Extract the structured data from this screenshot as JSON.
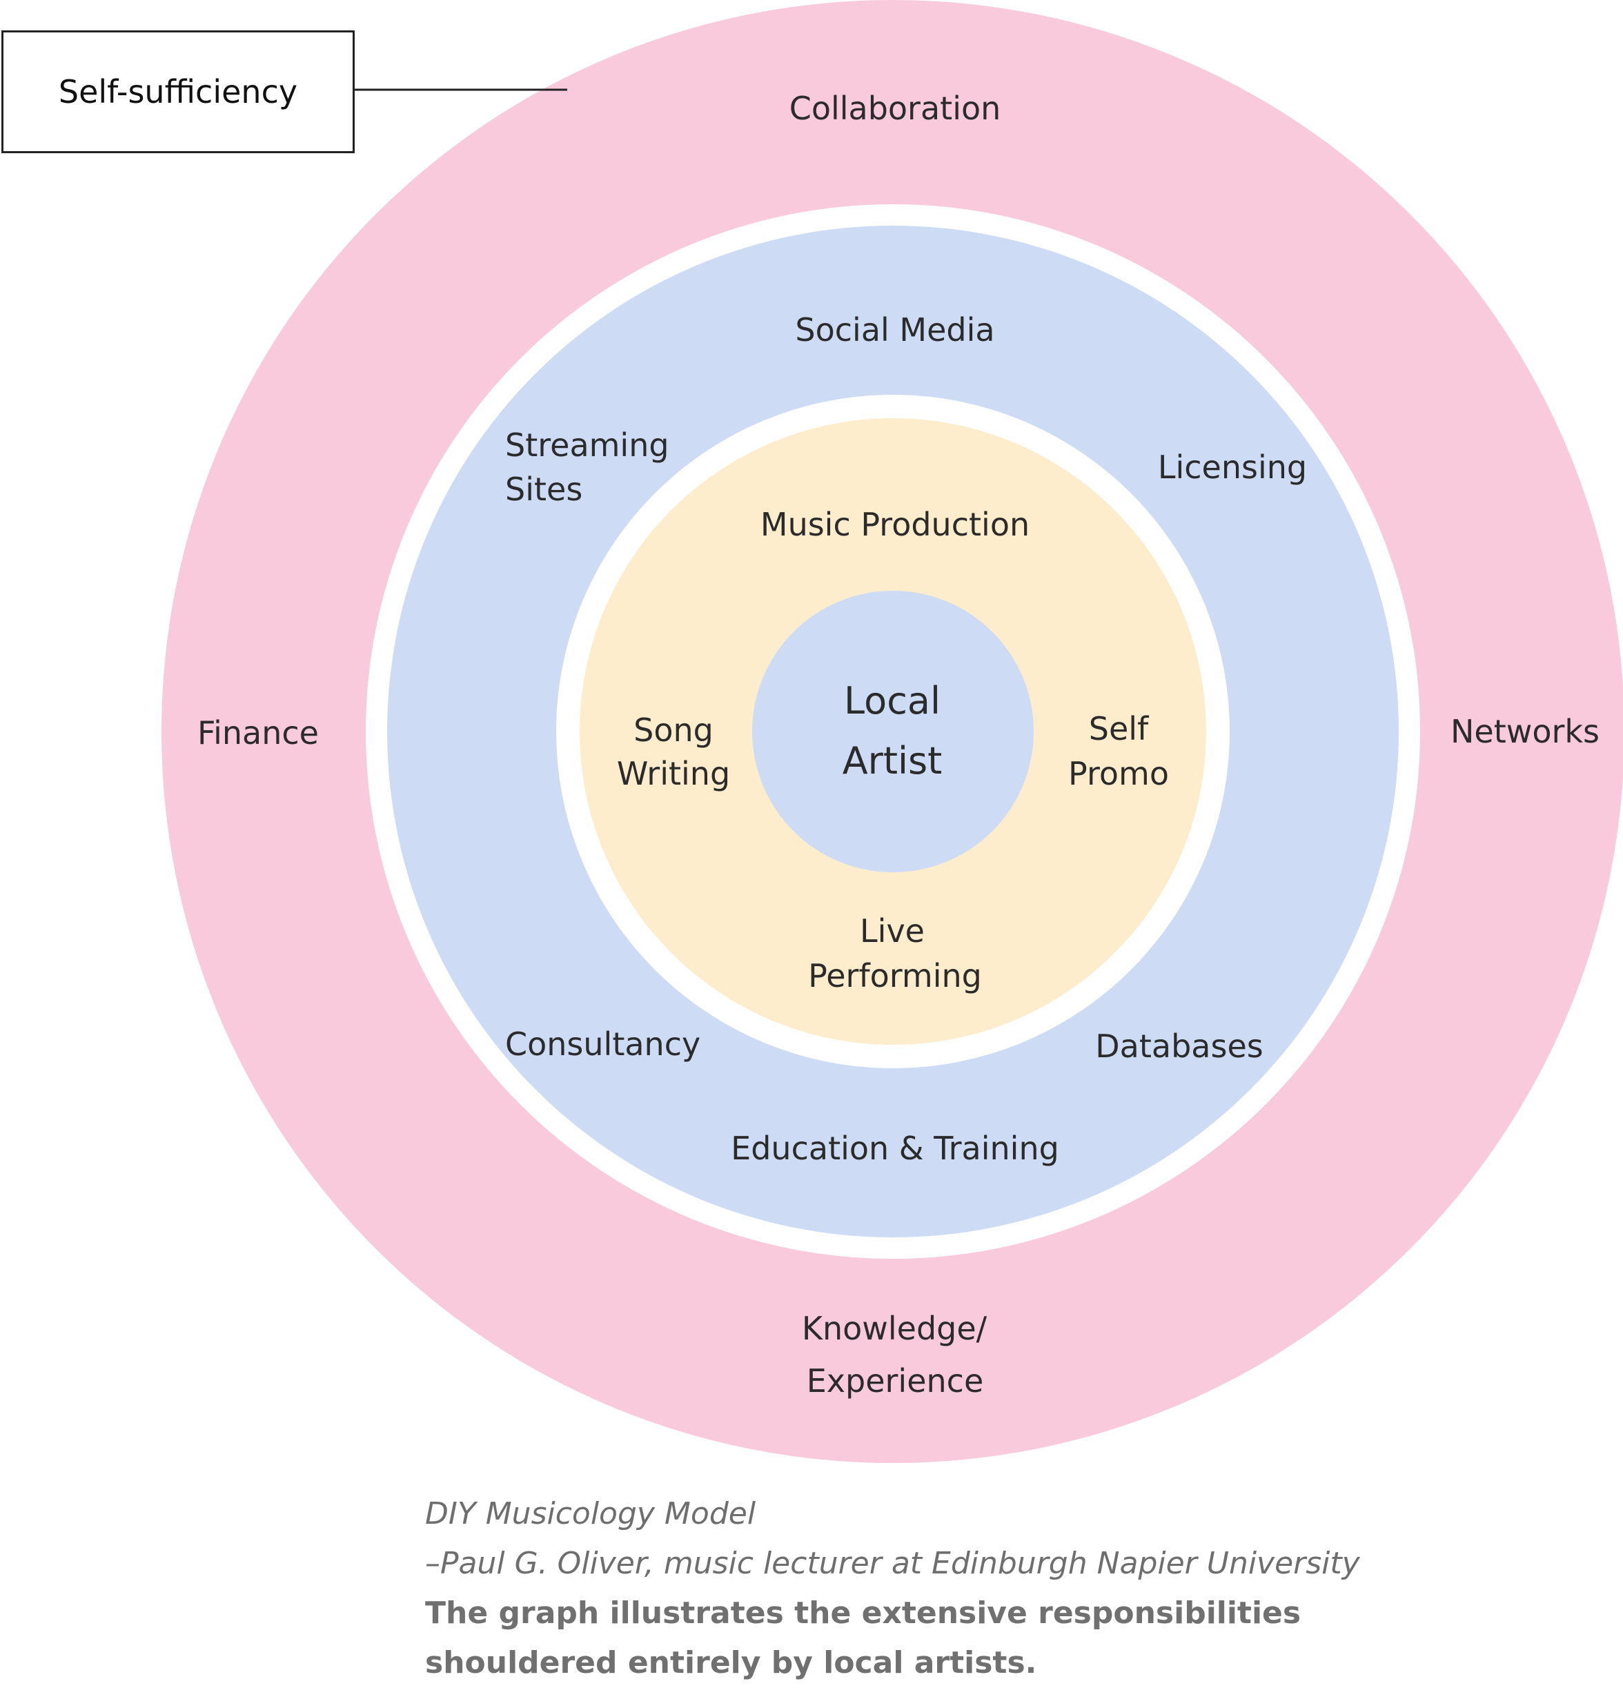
{
  "callout": {
    "label": "Self-sufficiency"
  },
  "rings": {
    "outer": {
      "color": "#f9cadb",
      "labels": {
        "top": "Collaboration",
        "left": "Finance",
        "right": "Networks",
        "bottom_line1": "Knowledge/",
        "bottom_line2": "Experience"
      }
    },
    "middle": {
      "color": "#cddcf4",
      "labels": {
        "top": "Social Media",
        "top_left_line1": "Streaming",
        "top_left_line2": "Sites",
        "top_right": "Licensing",
        "bottom_left": "Consultancy",
        "bottom_right": "Databases",
        "bottom": "Education & Training"
      }
    },
    "inner": {
      "color": "#feedcd",
      "labels": {
        "top": "Music Production",
        "left_line1": "Song",
        "left_line2": "Writing",
        "right_line1": "Self",
        "right_line2": "Promo",
        "bottom_line1": "Live",
        "bottom_line2": "Performing"
      }
    },
    "center": {
      "color": "#cddcf4",
      "label_line1": "Local",
      "label_line2": "Artist"
    }
  },
  "caption": {
    "title": "DIY Musicology Model",
    "attribution": "–Paul G. Oliver, music lecturer at Edinburgh Napier University",
    "description_line1": "The graph illustrates the extensive responsibilities",
    "description_line2": "shouldered entirely by local artists."
  }
}
